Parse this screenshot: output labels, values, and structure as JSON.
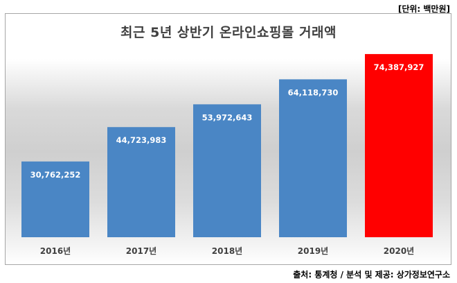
{
  "unit_label": "[단위: 백만원]",
  "source_label": "출처: 통계청 / 분석 및 제공: 상가정보연구소",
  "colors": {
    "bar_default": "#4a86c5",
    "bar_highlight": "#ff0000",
    "label_text": "#ffffff"
  },
  "chart_data": {
    "type": "bar",
    "title": "최근 5년 상반기 온라인쇼핑몰 거래액",
    "xlabel": "",
    "ylabel": "",
    "categories": [
      "2016년",
      "2017년",
      "2018년",
      "2019년",
      "2020년"
    ],
    "values": [
      30762252,
      44723983,
      53972643,
      64118730,
      74387927
    ],
    "value_labels": [
      "30,762,252",
      "44,723,983",
      "53,972,643",
      "64,118,730",
      "74,387,927"
    ],
    "highlight_index": 4,
    "ylim": [
      0,
      80000000
    ],
    "grid": false,
    "legend": "none"
  }
}
